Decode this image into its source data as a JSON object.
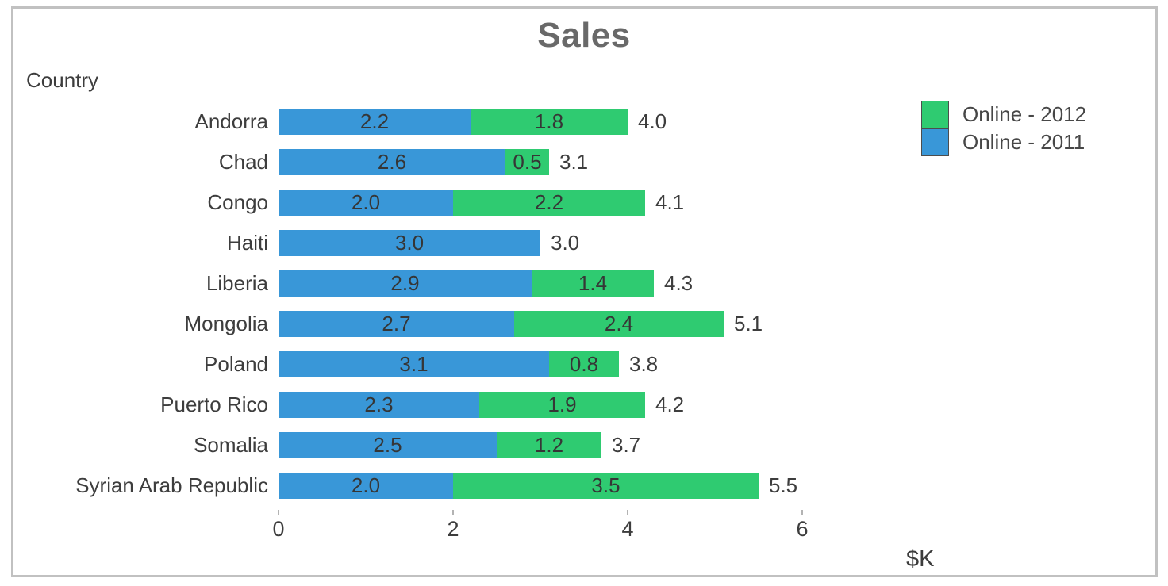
{
  "window": {
    "background": "#ffffff",
    "frame_border_color": "#c1c1c1"
  },
  "chart_data": {
    "type": "bar",
    "orientation": "horizontal",
    "stacked": true,
    "title": "Sales",
    "ylabel": "Country",
    "xlabel": "$K",
    "categories": [
      "Andorra",
      "Chad",
      "Congo",
      "Haiti",
      "Liberia",
      "Mongolia",
      "Poland",
      "Puerto Rico",
      "Somalia",
      "Syrian Arab Republic"
    ],
    "series": [
      {
        "name": "Online - 2011",
        "color": "#3997d8",
        "values": [
          2.2,
          2.6,
          2.0,
          3.0,
          2.9,
          2.7,
          3.1,
          2.3,
          2.5,
          2.0
        ]
      },
      {
        "name": "Online - 2012",
        "color": "#2fcb71",
        "values": [
          1.8,
          0.5,
          2.2,
          0.0,
          1.4,
          2.4,
          0.8,
          1.9,
          1.2,
          3.5
        ]
      }
    ],
    "totals": [
      4.0,
      3.1,
      4.1,
      3.0,
      4.3,
      5.1,
      3.8,
      4.2,
      3.7,
      5.5
    ],
    "xticks": [
      0,
      2,
      4,
      6
    ],
    "xlim": [
      0,
      6.6
    ],
    "grid": false,
    "title_color": "#696969",
    "text_color": "#3d3d3d",
    "legend": {
      "position": "top-right",
      "entries": [
        {
          "label": "Online - 2012",
          "color": "#2fcb71"
        },
        {
          "label": "Online - 2011",
          "color": "#3997d8"
        }
      ]
    }
  }
}
